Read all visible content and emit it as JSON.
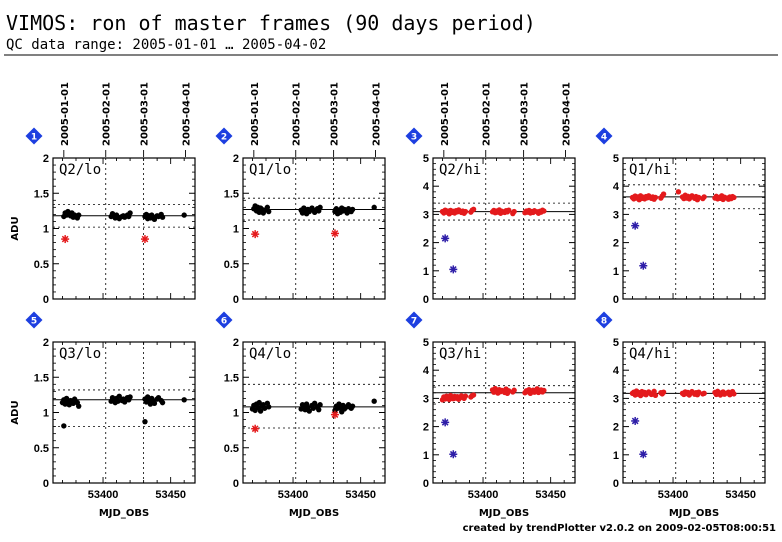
{
  "title": "VIMOS: ron of master frames (90 days period)",
  "subtitle": "QC data range: 2005-01-01 … 2005-04-02",
  "credit": "created by trendPlotter v2.0.2 on 2009-02-05T08:00:51",
  "colors": {
    "black_marker": "#000000",
    "red_marker": "#e41a1c",
    "blue_marker": "#2e1ea8",
    "badge": "#1d3fe0"
  },
  "chart_data": [
    {
      "id": 1,
      "type": "scatter",
      "panel_label": "Q2/lo",
      "xlim": [
        53363,
        53468
      ],
      "ylim": [
        0,
        2
      ],
      "yticks": [
        "0",
        "0.5",
        "1",
        "1.5",
        "2"
      ],
      "ylabel": "ADU",
      "xlabel": "",
      "xticks": [],
      "date_ticks": [
        "2005-01-01",
        "2005-02-01",
        "2005-03-01",
        "2005-04-01"
      ],
      "ref_line": 1.18,
      "limits": [
        1.02,
        1.34
      ],
      "series": [
        {
          "marker": "black-dot",
          "x": [
            53371,
            53372,
            53373,
            53374,
            53375,
            53376,
            53377,
            53378,
            53379,
            53381,
            53382,
            53406,
            53407,
            53408,
            53409,
            53410,
            53411,
            53412,
            53414,
            53415,
            53416,
            53418,
            53419,
            53420,
            53431,
            53432,
            53433,
            53434,
            53435,
            53436,
            53437,
            53438,
            53440,
            53441,
            53443,
            53444,
            53460
          ],
          "y": [
            1.17,
            1.22,
            1.19,
            1.24,
            1.2,
            1.18,
            1.22,
            1.16,
            1.19,
            1.15,
            1.19,
            1.17,
            1.21,
            1.18,
            1.15,
            1.19,
            1.16,
            1.14,
            1.17,
            1.18,
            1.16,
            1.19,
            1.17,
            1.22,
            1.17,
            1.2,
            1.14,
            1.18,
            1.15,
            1.19,
            1.16,
            1.13,
            1.18,
            1.17,
            1.2,
            1.16,
            1.19
          ]
        },
        {
          "marker": "red-star",
          "x": [
            53372,
            53431
          ],
          "y": [
            0.85,
            0.85
          ]
        }
      ]
    },
    {
      "id": 2,
      "type": "scatter",
      "panel_label": "Q1/lo",
      "xlim": [
        53363,
        53468
      ],
      "ylim": [
        0,
        2
      ],
      "yticks": [
        "0",
        "0.5",
        "1",
        "1.5",
        "2"
      ],
      "ylabel": "",
      "xlabel": "",
      "xticks": [],
      "date_ticks": [
        "2005-01-01",
        "2005-02-01",
        "2005-03-01",
        "2005-04-01"
      ],
      "ref_line": 1.27,
      "limits": [
        1.12,
        1.43
      ],
      "series": [
        {
          "marker": "black-dot",
          "x": [
            53371,
            53372,
            53373,
            53374,
            53375,
            53376,
            53377,
            53378,
            53379,
            53381,
            53382,
            53406,
            53407,
            53408,
            53409,
            53410,
            53411,
            53412,
            53414,
            53415,
            53416,
            53418,
            53419,
            53420,
            53431,
            53432,
            53433,
            53434,
            53435,
            53436,
            53437,
            53438,
            53440,
            53441,
            53443,
            53444,
            53460
          ],
          "y": [
            1.28,
            1.32,
            1.25,
            1.3,
            1.23,
            1.29,
            1.27,
            1.22,
            1.26,
            1.3,
            1.24,
            1.26,
            1.22,
            1.29,
            1.25,
            1.21,
            1.27,
            1.24,
            1.29,
            1.26,
            1.23,
            1.28,
            1.25,
            1.3,
            1.24,
            1.28,
            1.21,
            1.26,
            1.23,
            1.29,
            1.25,
            1.27,
            1.22,
            1.28,
            1.24,
            1.27,
            1.3
          ]
        },
        {
          "marker": "red-star",
          "x": [
            53372,
            53431
          ],
          "y": [
            0.92,
            0.93
          ]
        }
      ]
    },
    {
      "id": 3,
      "type": "scatter",
      "panel_label": "Q2/hi",
      "xlim": [
        53363,
        53468
      ],
      "ylim": [
        0,
        5
      ],
      "yticks": [
        "0",
        "1",
        "2",
        "3",
        "4",
        "5"
      ],
      "ylabel": "",
      "xlabel": "",
      "xticks": [],
      "date_ticks": [
        "2005-01-01",
        "2005-02-01",
        "2005-03-01",
        "2005-04-01"
      ],
      "ref_line": 3.1,
      "limits": [
        2.8,
        3.4
      ],
      "series": [
        {
          "marker": "red-dot",
          "x": [
            53370,
            53371,
            53372,
            53373,
            53374,
            53375,
            53376,
            53377,
            53378,
            53379,
            53380,
            53381,
            53382,
            53384,
            53385,
            53386,
            53387,
            53391,
            53392,
            53393,
            53407,
            53408,
            53409,
            53410,
            53411,
            53412,
            53413,
            53414,
            53416,
            53417,
            53418,
            53419,
            53422,
            53423,
            53431,
            53432,
            53433,
            53434,
            53435,
            53436,
            53437,
            53438,
            53440,
            53441,
            53442,
            53443,
            53444,
            53445
          ],
          "y": [
            3.1,
            3.05,
            3.15,
            3.08,
            3.12,
            3.02,
            3.14,
            3.07,
            3.11,
            3.05,
            3.13,
            3.09,
            3.16,
            3.07,
            3.12,
            3.04,
            3.1,
            3.08,
            3.15,
            3.18,
            3.09,
            3.14,
            3.06,
            3.12,
            3.08,
            3.16,
            3.04,
            3.11,
            3.07,
            3.13,
            3.09,
            3.15,
            3.03,
            3.1,
            3.06,
            3.12,
            3.08,
            3.14,
            3.05,
            3.1,
            3.07,
            3.13,
            3.09,
            3.04,
            3.11,
            3.08,
            3.15,
            3.12
          ]
        },
        {
          "marker": "blue-star",
          "x": [
            53372,
            53378
          ],
          "y": [
            2.15,
            1.05
          ]
        }
      ]
    },
    {
      "id": 4,
      "type": "scatter",
      "panel_label": "Q1/hi",
      "xlim": [
        53363,
        53468
      ],
      "ylim": [
        0,
        5
      ],
      "yticks": [
        "0",
        "1",
        "2",
        "3",
        "4",
        "5"
      ],
      "ylabel": "",
      "xlabel": "",
      "xticks": [],
      "date_ticks": [],
      "ref_line": 3.62,
      "limits": [
        3.2,
        4.05
      ],
      "series": [
        {
          "marker": "red-dot",
          "x": [
            53370,
            53371,
            53372,
            53373,
            53374,
            53375,
            53376,
            53377,
            53378,
            53379,
            53380,
            53381,
            53382,
            53384,
            53385,
            53386,
            53387,
            53391,
            53392,
            53393,
            53404,
            53407,
            53408,
            53409,
            53410,
            53411,
            53412,
            53413,
            53414,
            53416,
            53417,
            53418,
            53419,
            53422,
            53423,
            53431,
            53432,
            53433,
            53434,
            53435,
            53436,
            53437,
            53438,
            53440,
            53441,
            53442,
            53443,
            53444,
            53445
          ],
          "y": [
            3.6,
            3.55,
            3.65,
            3.58,
            3.62,
            3.52,
            3.66,
            3.57,
            3.61,
            3.55,
            3.63,
            3.59,
            3.66,
            3.57,
            3.62,
            3.54,
            3.6,
            3.58,
            3.65,
            3.72,
            3.8,
            3.62,
            3.56,
            3.68,
            3.58,
            3.64,
            3.55,
            3.61,
            3.66,
            3.57,
            3.63,
            3.52,
            3.6,
            3.56,
            3.62,
            3.58,
            3.64,
            3.55,
            3.6,
            3.57,
            3.66,
            3.53,
            3.61,
            3.58,
            3.54,
            3.62,
            3.56,
            3.63,
            3.6
          ]
        },
        {
          "marker": "blue-star",
          "x": [
            53372,
            53378
          ],
          "y": [
            2.6,
            1.18
          ]
        }
      ]
    },
    {
      "id": 5,
      "type": "scatter",
      "panel_label": "Q3/lo",
      "xlim": [
        53363,
        53468
      ],
      "ylim": [
        0,
        2
      ],
      "yticks": [
        "0",
        "0.5",
        "1",
        "1.5",
        "2"
      ],
      "ylabel": "ADU",
      "xlabel": "MJD_OBS",
      "xticks": [
        "53400",
        "53450"
      ],
      "date_ticks": [],
      "ref_line": 1.18,
      "limits": [
        0.8,
        1.32
      ],
      "series": [
        {
          "marker": "black-dot",
          "x": [
            53370,
            53371,
            53372,
            53373,
            53374,
            53375,
            53376,
            53377,
            53378,
            53379,
            53381,
            53382,
            53406,
            53407,
            53408,
            53409,
            53410,
            53411,
            53412,
            53414,
            53415,
            53416,
            53418,
            53419,
            53420,
            53431,
            53432,
            53433,
            53434,
            53435,
            53436,
            53437,
            53438,
            53440,
            53441,
            53443,
            53444,
            53460
          ],
          "y": [
            1.14,
            1.18,
            1.12,
            1.2,
            1.16,
            1.11,
            1.17,
            1.15,
            1.13,
            1.19,
            1.14,
            1.09,
            1.16,
            1.21,
            1.18,
            1.14,
            1.2,
            1.16,
            1.23,
            1.17,
            1.19,
            1.15,
            1.21,
            1.18,
            1.22,
            1.19,
            1.15,
            1.22,
            1.18,
            1.12,
            1.2,
            1.16,
            1.13,
            1.19,
            1.21,
            1.17,
            1.14,
            1.18
          ]
        },
        {
          "marker": "black-dot",
          "x": [
            53371,
            53431
          ],
          "y": [
            0.81,
            0.87
          ]
        }
      ]
    },
    {
      "id": 6,
      "type": "scatter",
      "panel_label": "Q4/lo",
      "xlim": [
        53363,
        53468
      ],
      "ylim": [
        0,
        2
      ],
      "yticks": [
        "0",
        "0.5",
        "1",
        "1.5",
        "2"
      ],
      "ylabel": "",
      "xlabel": "MJD_OBS",
      "xticks": [
        "53400",
        "53450"
      ],
      "date_ticks": [],
      "ref_line": 1.08,
      "limits": [
        0.78,
        1.4
      ],
      "series": [
        {
          "marker": "black-dot",
          "x": [
            53370,
            53371,
            53372,
            53373,
            53374,
            53375,
            53376,
            53377,
            53378,
            53379,
            53381,
            53382,
            53406,
            53407,
            53408,
            53409,
            53410,
            53411,
            53412,
            53414,
            53415,
            53416,
            53418,
            53419,
            53420,
            53431,
            53432,
            53433,
            53434,
            53435,
            53436,
            53437,
            53438,
            53440,
            53441,
            53443,
            53444,
            53460
          ],
          "y": [
            1.05,
            1.1,
            1.03,
            1.12,
            1.07,
            1.14,
            1.02,
            1.09,
            1.11,
            1.06,
            1.13,
            1.08,
            1.05,
            1.11,
            1.09,
            1.04,
            1.12,
            1.07,
            1.02,
            1.1,
            1.06,
            1.13,
            1.08,
            1.04,
            1.11,
            1.03,
            1.09,
            1.06,
            1.12,
            1.07,
            1.01,
            1.1,
            1.05,
            1.08,
            1.11,
            1.06,
            1.09,
            1.16
          ]
        },
        {
          "marker": "red-star",
          "x": [
            53372,
            53431
          ],
          "y": [
            0.77,
            0.97
          ]
        }
      ]
    },
    {
      "id": 7,
      "type": "scatter",
      "panel_label": "Q3/hi",
      "xlim": [
        53363,
        53468
      ],
      "ylim": [
        0,
        5
      ],
      "yticks": [
        "0",
        "1",
        "2",
        "3",
        "4",
        "5"
      ],
      "ylabel": "",
      "xlabel": "MJD_OBS",
      "xticks": [
        "53400",
        "53450"
      ],
      "date_ticks": [],
      "ref_line": 3.2,
      "limits": [
        2.85,
        3.45
      ],
      "series": [
        {
          "marker": "red-dot",
          "x": [
            53370,
            53371,
            53372,
            53373,
            53374,
            53375,
            53376,
            53377,
            53378,
            53379,
            53380,
            53381,
            53382,
            53384,
            53385,
            53386,
            53387,
            53391,
            53392,
            53393,
            53407,
            53408,
            53409,
            53410,
            53411,
            53412,
            53413,
            53414,
            53416,
            53417,
            53418,
            53419,
            53422,
            53423,
            53431,
            53432,
            53433,
            53434,
            53435,
            53436,
            53437,
            53438,
            53440,
            53441,
            53442,
            53443,
            53444,
            53445
          ],
          "y": [
            2.95,
            3.05,
            2.98,
            3.08,
            3.02,
            2.96,
            3.1,
            3.04,
            2.99,
            3.07,
            3.01,
            3.06,
            2.97,
            3.09,
            3.03,
            3.0,
            3.08,
            3.05,
            3.1,
            3.12,
            3.3,
            3.22,
            3.35,
            3.26,
            3.19,
            3.31,
            3.24,
            3.28,
            3.21,
            3.33,
            3.18,
            3.27,
            3.23,
            3.29,
            3.2,
            3.27,
            3.24,
            3.31,
            3.18,
            3.25,
            3.29,
            3.22,
            3.34,
            3.21,
            3.26,
            3.3,
            3.23,
            3.28
          ]
        },
        {
          "marker": "blue-star",
          "x": [
            53372,
            53378
          ],
          "y": [
            2.15,
            1.02
          ]
        }
      ]
    },
    {
      "id": 8,
      "type": "scatter",
      "panel_label": "Q4/hi",
      "xlim": [
        53363,
        53468
      ],
      "ylim": [
        0,
        5
      ],
      "yticks": [
        "0",
        "1",
        "2",
        "3",
        "4",
        "5"
      ],
      "ylabel": "",
      "xlabel": "MJD_OBS",
      "xticks": [
        "53400",
        "53450"
      ],
      "date_ticks": [],
      "ref_line": 3.18,
      "limits": [
        2.85,
        3.5
      ],
      "series": [
        {
          "marker": "red-dot",
          "x": [
            53370,
            53371,
            53372,
            53373,
            53374,
            53375,
            53376,
            53377,
            53378,
            53379,
            53380,
            53381,
            53382,
            53384,
            53385,
            53386,
            53387,
            53391,
            53392,
            53393,
            53407,
            53408,
            53409,
            53410,
            53411,
            53412,
            53413,
            53414,
            53416,
            53417,
            53418,
            53419,
            53422,
            53423,
            53431,
            53432,
            53433,
            53434,
            53435,
            53436,
            53437,
            53438,
            53440,
            53441,
            53442,
            53443,
            53444,
            53445
          ],
          "y": [
            3.18,
            3.22,
            3.12,
            3.26,
            3.15,
            3.2,
            3.1,
            3.24,
            3.16,
            3.21,
            3.13,
            3.19,
            3.23,
            3.14,
            3.17,
            3.25,
            3.11,
            3.2,
            3.16,
            3.22,
            3.18,
            3.14,
            3.23,
            3.17,
            3.21,
            3.12,
            3.19,
            3.24,
            3.15,
            3.2,
            3.13,
            3.22,
            3.16,
            3.18,
            3.21,
            3.14,
            3.25,
            3.17,
            3.12,
            3.2,
            3.23,
            3.15,
            3.19,
            3.22,
            3.13,
            3.18,
            3.24,
            3.16
          ]
        },
        {
          "marker": "blue-star",
          "x": [
            53372,
            53378
          ],
          "y": [
            2.2,
            1.02
          ]
        }
      ]
    }
  ]
}
